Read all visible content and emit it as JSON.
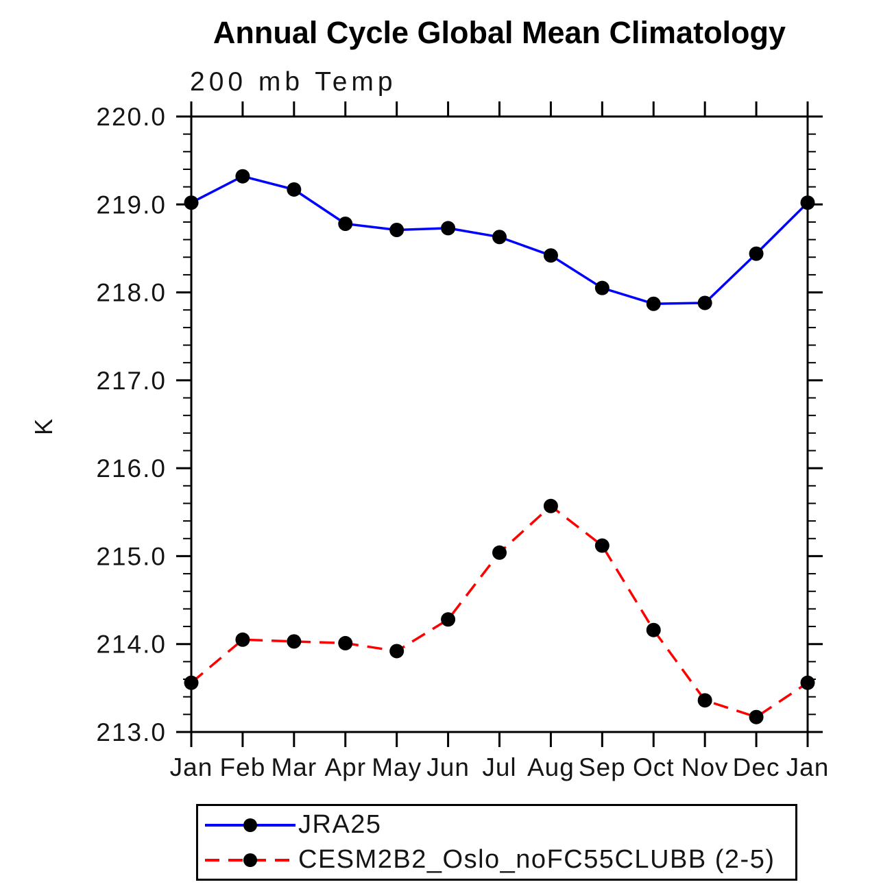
{
  "chart_data": {
    "type": "line",
    "title": "Annual Cycle Global Mean Climatology",
    "subtitle": "200 mb Temp",
    "ylabel": "K",
    "x_categories": [
      "Jan",
      "Feb",
      "Mar",
      "Apr",
      "May",
      "Jun",
      "Jul",
      "Aug",
      "Sep",
      "Oct",
      "Nov",
      "Dec",
      "Jan"
    ],
    "ylim": [
      213.0,
      220.0
    ],
    "ytick_step": 1.0,
    "ytick_minor_step": 0.2,
    "ytick_labels": [
      "213.0",
      "214.0",
      "215.0",
      "216.0",
      "217.0",
      "218.0",
      "219.0",
      "220.0"
    ],
    "grid": false,
    "legend_position": "bottom",
    "axis_color": "#000000",
    "marker_color": "#000000",
    "series": [
      {
        "name": "JRA25",
        "color": "#0000ff",
        "line_style": "solid",
        "marker": "filled-circle",
        "values": [
          219.02,
          219.32,
          219.17,
          218.78,
          218.71,
          218.73,
          218.63,
          218.42,
          218.05,
          217.87,
          217.88,
          218.44,
          219.02
        ]
      },
      {
        "name": "CESM2B2_Oslo_noFC55CLUBB (2-5)",
        "color": "#ff0000",
        "line_style": "dashed",
        "marker": "filled-circle",
        "values": [
          213.56,
          214.05,
          214.03,
          214.01,
          213.92,
          214.28,
          215.04,
          215.57,
          215.12,
          214.16,
          213.36,
          213.17,
          213.56
        ]
      }
    ]
  }
}
